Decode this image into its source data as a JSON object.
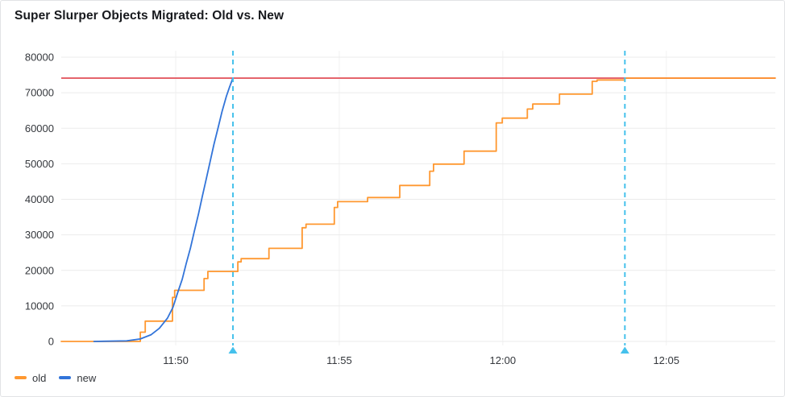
{
  "panel": {
    "title": "Super Slurper Objects Migrated: Old vs. New"
  },
  "ui": {
    "legend": {
      "items": [
        {
          "label": "old",
          "color": "#ff9830"
        },
        {
          "label": "new",
          "color": "#3274d9"
        }
      ]
    }
  },
  "chart_data": {
    "type": "line",
    "title": "Super Slurper Objects Migrated: Old vs. New",
    "x_axis": {
      "kind": "time",
      "window_start": "11:46:30",
      "window_end": "12:08:20",
      "domain_seconds": [
        0,
        1310
      ],
      "ticks": [
        {
          "t": 210,
          "label": "11:50"
        },
        {
          "t": 510,
          "label": "11:55"
        },
        {
          "t": 810,
          "label": "12:00"
        },
        {
          "t": 1110,
          "label": "12:05"
        }
      ],
      "grid": true
    },
    "y_axis": {
      "range": [
        0,
        80000
      ],
      "ticks": [
        0,
        10000,
        20000,
        30000,
        40000,
        50000,
        60000,
        70000,
        80000
      ],
      "grid": true
    },
    "threshold_line": {
      "value": 74100,
      "color": "#e5646c"
    },
    "annotations": [
      {
        "t": 315,
        "time": "11:51:45",
        "color": "#45c1ec"
      },
      {
        "t": 1034,
        "time": "12:03:44",
        "color": "#45c1ec"
      }
    ],
    "series": [
      {
        "name": "old",
        "color": "#ff9830",
        "mode": "step-after",
        "points": [
          [
            0,
            0
          ],
          [
            145,
            2600
          ],
          [
            154,
            5700
          ],
          [
            204,
            12400
          ],
          [
            208,
            14400
          ],
          [
            262,
            17700
          ],
          [
            269,
            19700
          ],
          [
            324,
            22400
          ],
          [
            330,
            23300
          ],
          [
            381,
            26200
          ],
          [
            442,
            32000
          ],
          [
            449,
            33000
          ],
          [
            501,
            37700
          ],
          [
            507,
            39350
          ],
          [
            562,
            40500
          ],
          [
            621,
            43900
          ],
          [
            676,
            47900
          ],
          [
            683,
            49900
          ],
          [
            739,
            53550
          ],
          [
            798,
            61500
          ],
          [
            809,
            62840
          ],
          [
            855,
            65400
          ],
          [
            865,
            66800
          ],
          [
            914,
            69600
          ],
          [
            974,
            73200
          ],
          [
            983,
            73580
          ],
          [
            1034,
            74100
          ],
          [
            1310,
            74100
          ]
        ]
      },
      {
        "name": "new",
        "color": "#3274d9",
        "mode": "linear",
        "points": [
          [
            60,
            0
          ],
          [
            120,
            150
          ],
          [
            145,
            700
          ],
          [
            165,
            1900
          ],
          [
            180,
            3700
          ],
          [
            195,
            6600
          ],
          [
            205,
            9600
          ],
          [
            214,
            13900
          ],
          [
            222,
            17500
          ],
          [
            229,
            21800
          ],
          [
            237,
            26300
          ],
          [
            244,
            30900
          ],
          [
            252,
            36000
          ],
          [
            259,
            41000
          ],
          [
            266,
            45700
          ],
          [
            273,
            50500
          ],
          [
            280,
            55400
          ],
          [
            288,
            60300
          ],
          [
            295,
            64700
          ],
          [
            303,
            69000
          ],
          [
            309,
            71700
          ],
          [
            315,
            74100
          ]
        ]
      }
    ],
    "legend_position": "bottom-left"
  }
}
